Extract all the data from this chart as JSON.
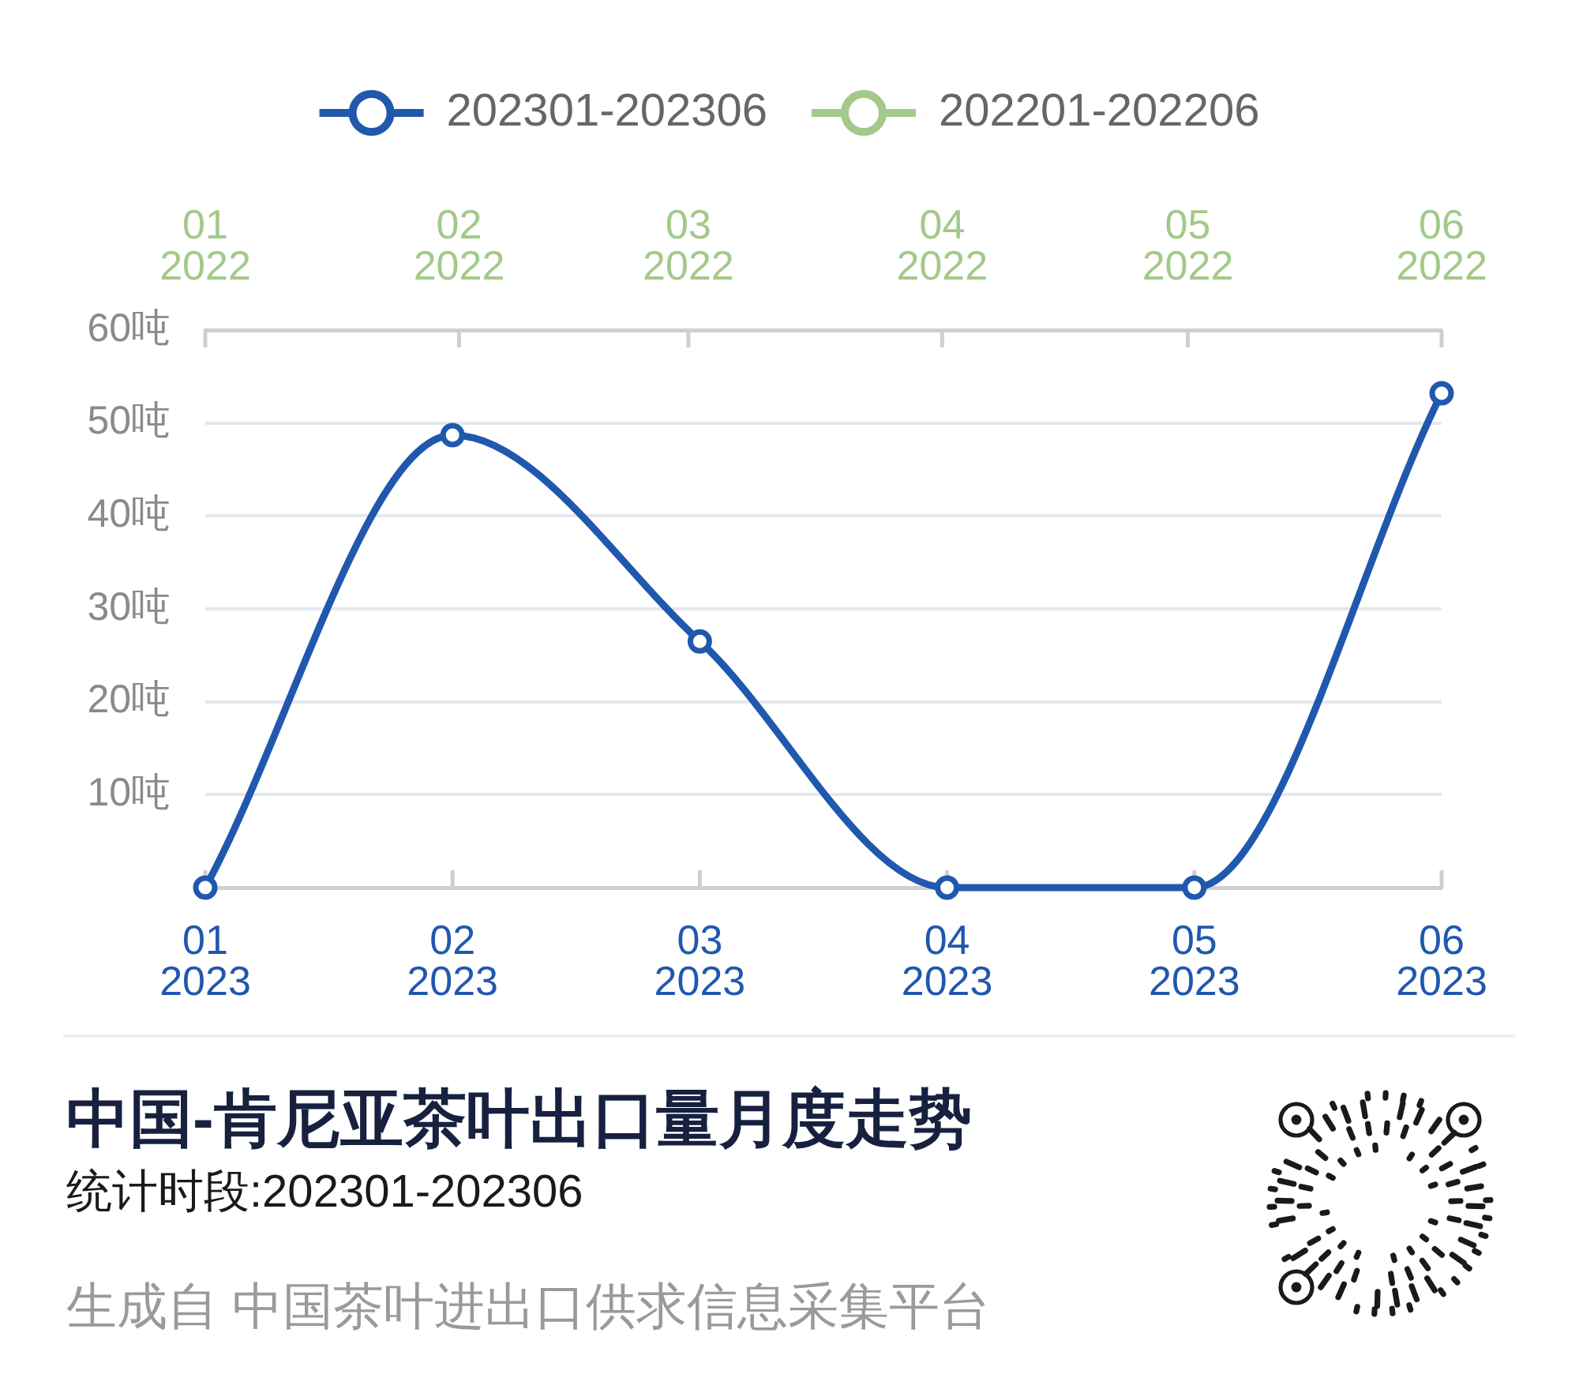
{
  "chart_data": {
    "type": "line",
    "title": "中国-肯尼亚茶叶出口量月度走势",
    "subtitle": "统计时段:202301-202306",
    "annotations": [
      "生成自 中国茶叶进出口供求信息采集平台"
    ],
    "categories": [
      "01\n2023",
      "02\n2023",
      "03\n2023",
      "04\n2023",
      "05\n2023",
      "06\n2023"
    ],
    "x2lim": [
      "2022-01",
      "2022-06"
    ],
    "x2ticks": [
      {
        "value": "2022-01",
        "label": "01\n2022"
      },
      {
        "value": "2022-02",
        "label": "02\n2022"
      },
      {
        "value": "2022-03",
        "label": "03\n2022"
      },
      {
        "value": "2022-04",
        "label": "04\n2022"
      },
      {
        "value": "2022-05",
        "label": "05\n2022"
      },
      {
        "value": "2022-06",
        "label": "06\n2022"
      }
    ],
    "series": [
      {
        "name": "202301-202306",
        "color": "#2058ae",
        "values": [
          0,
          48.7,
          26.5,
          0,
          0,
          53.2
        ]
      },
      {
        "name": "202201-202206",
        "color": "#a3c98a",
        "axis": "x2",
        "values": [
          null,
          null,
          null,
          null,
          null,
          null
        ]
      }
    ],
    "ylim": [
      0,
      60
    ],
    "yticks": [
      {
        "value": 0,
        "label": null
      },
      {
        "value": 10,
        "label": "10吨"
      },
      {
        "value": 20,
        "label": "20吨"
      },
      {
        "value": 30,
        "label": "30吨"
      },
      {
        "value": 40,
        "label": "40吨"
      },
      {
        "value": 50,
        "label": "50吨"
      },
      {
        "value": 60,
        "label": "60吨"
      }
    ],
    "grid": "y",
    "legend": "top",
    "marker": "circle",
    "line_style": "solid"
  }
}
